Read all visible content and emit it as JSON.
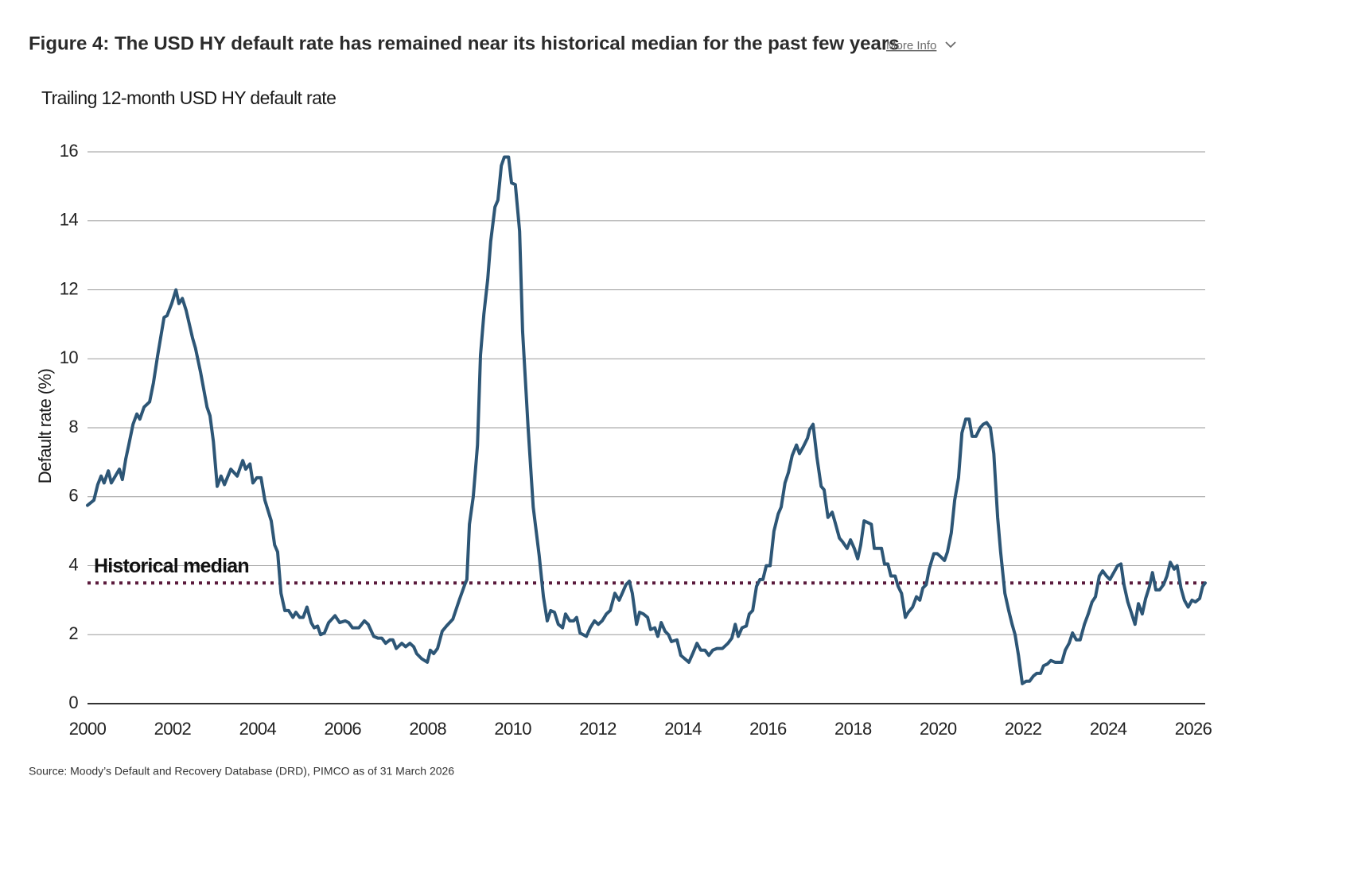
{
  "header": {
    "title": "Figure 4: The USD HY default rate has remained near its historical median for the past few years",
    "more_info": "More Info"
  },
  "chart_data": {
    "type": "line",
    "subtitle": "Trailing 12-month USD HY default rate",
    "y_label": "Default rate (%)",
    "x": [
      2000.0,
      2000.15,
      2000.24,
      2000.32,
      2000.39,
      2000.49,
      2000.56,
      2000.75,
      2000.82,
      2000.9,
      2000.97,
      2001.07,
      2001.16,
      2001.23,
      2001.33,
      2001.46,
      2001.55,
      2001.65,
      2001.8,
      2001.87,
      2001.98,
      2002.08,
      2002.15,
      2002.23,
      2002.32,
      2002.47,
      2002.54,
      2002.66,
      2002.81,
      2002.88,
      2002.96,
      2003.05,
      2003.14,
      2003.22,
      2003.37,
      2003.52,
      2003.65,
      2003.72,
      2003.82,
      2003.89,
      2003.98,
      2004.08,
      2004.17,
      2004.32,
      2004.4,
      2004.47,
      2004.55,
      2004.64,
      2004.73,
      2004.83,
      2004.9,
      2004.99,
      2005.07,
      2005.16,
      2005.26,
      2005.33,
      2005.41,
      2005.48,
      2005.57,
      2005.67,
      2005.82,
      2005.93,
      2006.06,
      2006.14,
      2006.23,
      2006.38,
      2006.51,
      2006.6,
      2006.73,
      2006.83,
      2006.92,
      2007.01,
      2007.11,
      2007.18,
      2007.26,
      2007.39,
      2007.48,
      2007.58,
      2007.67,
      2007.74,
      2007.86,
      2007.99,
      2008.06,
      2008.14,
      2008.23,
      2008.34,
      2008.44,
      2008.59,
      2008.74,
      2008.87,
      2008.92,
      2008.98,
      2009.07,
      2009.17,
      2009.24,
      2009.32,
      2009.41,
      2009.48,
      2009.58,
      2009.65,
      2009.73,
      2009.8,
      2009.9,
      2009.97,
      2010.06,
      2010.16,
      2010.23,
      2010.36,
      2010.48,
      2010.62,
      2010.72,
      2010.81,
      2010.89,
      2010.98,
      2011.07,
      2011.17,
      2011.24,
      2011.34,
      2011.43,
      2011.5,
      2011.58,
      2011.73,
      2011.82,
      2011.92,
      2012.01,
      2012.1,
      2012.2,
      2012.29,
      2012.4,
      2012.5,
      2012.59,
      2012.66,
      2012.74,
      2012.81,
      2012.91,
      2012.98,
      2013.07,
      2013.17,
      2013.24,
      2013.34,
      2013.41,
      2013.49,
      2013.58,
      2013.66,
      2013.73,
      2013.86,
      2013.95,
      2014.14,
      2014.23,
      2014.33,
      2014.42,
      2014.52,
      2014.61,
      2014.7,
      2014.8,
      2014.93,
      2015.06,
      2015.15,
      2015.23,
      2015.3,
      2015.39,
      2015.49,
      2015.56,
      2015.64,
      2015.73,
      2015.81,
      2015.88,
      2015.96,
      2016.05,
      2016.14,
      2016.24,
      2016.31,
      2016.4,
      2016.48,
      2016.57,
      2016.67,
      2016.74,
      2016.83,
      2016.93,
      2016.98,
      2017.06,
      2017.15,
      2017.25,
      2017.32,
      2017.41,
      2017.51,
      2017.58,
      2017.68,
      2017.75,
      2017.86,
      2017.94,
      2018.03,
      2018.11,
      2018.18,
      2018.26,
      2018.35,
      2018.43,
      2018.5,
      2018.59,
      2018.67,
      2018.74,
      2018.82,
      2018.89,
      2018.99,
      2019.06,
      2019.14,
      2019.23,
      2019.3,
      2019.4,
      2019.49,
      2019.57,
      2019.64,
      2019.72,
      2019.79,
      2019.9,
      2019.98,
      2020.07,
      2020.15,
      2020.22,
      2020.31,
      2020.39,
      2020.48,
      2020.56,
      2020.65,
      2020.73,
      2020.8,
      2020.89,
      2020.99,
      2021.06,
      2021.14,
      2021.23,
      2021.31,
      2021.4,
      2021.47,
      2021.57,
      2021.66,
      2021.74,
      2021.81,
      2021.89,
      2021.98,
      2022.07,
      2022.15,
      2022.24,
      2022.32,
      2022.41,
      2022.48,
      2022.57,
      2022.65,
      2022.75,
      2022.84,
      2022.91,
      2022.99,
      2023.08,
      2023.16,
      2023.25,
      2023.34,
      2023.44,
      2023.53,
      2023.62,
      2023.7,
      2023.79,
      2023.87,
      2023.96,
      2024.04,
      2024.13,
      2024.22,
      2024.3,
      2024.37,
      2024.46,
      2024.54,
      2024.63,
      2024.71,
      2024.8,
      2024.88,
      2024.97,
      2025.04,
      2025.12,
      2025.21,
      2025.3,
      2025.38,
      2025.46,
      2025.55,
      2025.62,
      2025.71,
      2025.79,
      2025.88,
      2025.97,
      2026.05,
      2026.15,
      2026.22,
      2026.28
    ],
    "series": [
      {
        "color": "#2d5676",
        "values": [
          5.75,
          5.9,
          6.35,
          6.6,
          6.4,
          6.75,
          6.4,
          6.8,
          6.5,
          7.1,
          7.5,
          8.1,
          8.4,
          8.25,
          8.6,
          8.75,
          9.3,
          10.1,
          11.2,
          11.25,
          11.6,
          12.0,
          11.6,
          11.75,
          11.4,
          10.6,
          10.3,
          9.6,
          8.6,
          8.35,
          7.6,
          6.3,
          6.6,
          6.35,
          6.8,
          6.6,
          7.05,
          6.8,
          6.95,
          6.4,
          6.55,
          6.55,
          5.9,
          5.3,
          4.6,
          4.4,
          3.2,
          2.7,
          2.7,
          2.5,
          2.65,
          2.5,
          2.5,
          2.8,
          2.35,
          2.2,
          2.25,
          2.0,
          2.05,
          2.35,
          2.55,
          2.35,
          2.4,
          2.35,
          2.2,
          2.2,
          2.4,
          2.3,
          1.95,
          1.9,
          1.9,
          1.75,
          1.85,
          1.85,
          1.6,
          1.75,
          1.65,
          1.75,
          1.65,
          1.45,
          1.3,
          1.2,
          1.55,
          1.45,
          1.6,
          2.1,
          2.25,
          2.45,
          3.0,
          3.45,
          3.6,
          5.2,
          6.0,
          7.5,
          10.1,
          11.3,
          12.3,
          13.4,
          14.4,
          14.6,
          15.6,
          15.85,
          15.85,
          15.1,
          15.05,
          13.7,
          10.8,
          8.0,
          5.7,
          4.3,
          3.1,
          2.4,
          2.7,
          2.65,
          2.3,
          2.2,
          2.6,
          2.4,
          2.4,
          2.5,
          2.05,
          1.95,
          2.2,
          2.4,
          2.3,
          2.4,
          2.6,
          2.7,
          3.2,
          3.0,
          3.25,
          3.45,
          3.55,
          3.2,
          2.3,
          2.65,
          2.6,
          2.5,
          2.15,
          2.2,
          1.95,
          2.35,
          2.1,
          2.0,
          1.8,
          1.85,
          1.4,
          1.2,
          1.45,
          1.75,
          1.55,
          1.55,
          1.4,
          1.55,
          1.6,
          1.6,
          1.75,
          1.9,
          2.3,
          1.95,
          2.2,
          2.25,
          2.6,
          2.7,
          3.4,
          3.6,
          3.6,
          4.0,
          4.0,
          5.0,
          5.5,
          5.7,
          6.4,
          6.7,
          7.2,
          7.5,
          7.25,
          7.45,
          7.7,
          7.95,
          8.1,
          7.15,
          6.3,
          6.2,
          5.4,
          5.55,
          5.25,
          4.8,
          4.7,
          4.5,
          4.75,
          4.5,
          4.2,
          4.6,
          5.3,
          5.25,
          5.2,
          4.5,
          4.5,
          4.5,
          4.05,
          4.05,
          3.7,
          3.7,
          3.4,
          3.2,
          2.5,
          2.65,
          2.8,
          3.1,
          3.0,
          3.35,
          3.45,
          3.9,
          4.35,
          4.35,
          4.25,
          4.15,
          4.4,
          4.95,
          5.9,
          6.55,
          7.85,
          8.25,
          8.25,
          7.75,
          7.75,
          8.0,
          8.1,
          8.15,
          8.0,
          7.25,
          5.4,
          4.4,
          3.2,
          2.7,
          2.3,
          2.0,
          1.4,
          0.58,
          0.65,
          0.65,
          0.8,
          0.88,
          0.88,
          1.1,
          1.15,
          1.25,
          1.2,
          1.2,
          1.2,
          1.55,
          1.75,
          2.05,
          1.85,
          1.85,
          2.3,
          2.6,
          2.95,
          3.1,
          3.7,
          3.85,
          3.7,
          3.6,
          3.8,
          4.0,
          4.05,
          3.45,
          2.95,
          2.65,
          2.3,
          2.9,
          2.6,
          3.05,
          3.4,
          3.8,
          3.3,
          3.3,
          3.45,
          3.7,
          4.1,
          3.9,
          4.0,
          3.35,
          3.0,
          2.8,
          3.0,
          2.95,
          3.05,
          3.4,
          3.5
        ]
      }
    ],
    "xlim": [
      2000,
      2026.28
    ],
    "xticks": [
      2000,
      2002,
      2004,
      2006,
      2008,
      2010,
      2012,
      2014,
      2016,
      2018,
      2020,
      2022,
      2024,
      2026
    ],
    "ylim": [
      0,
      16
    ],
    "yticks": [
      0,
      2,
      4,
      6,
      8,
      10,
      12,
      14,
      16
    ],
    "grid": true,
    "reference_line": {
      "value": 3.5,
      "label": "Historical median",
      "color": "#5a1a3c"
    }
  },
  "source": "Source: Moody’s Default and Recovery Database (DRD), PIMCO as of 31 March 2026"
}
